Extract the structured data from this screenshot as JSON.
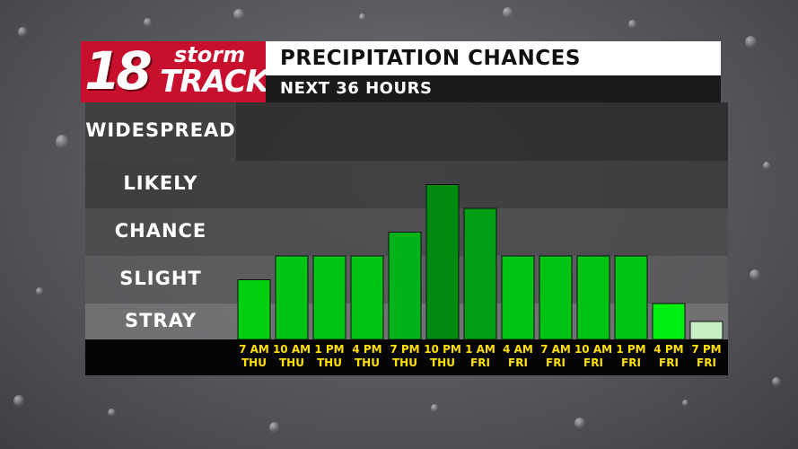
{
  "logo": {
    "number": "18",
    "word_top": "storm",
    "word_bottom": "TRACK"
  },
  "header": {
    "title": "PRECIPITATION CHANCES",
    "subtitle": "NEXT 36 HOURS"
  },
  "colors": {
    "bar_bright": "#00d010",
    "bar_mid": "#00b41a",
    "bar_dark": "#009010",
    "bar_light": "#c6efc6",
    "tick_text": "#ffe000",
    "logo_red": "#c8102e"
  },
  "chart_data": {
    "type": "bar",
    "title": "PRECIPITATION CHANCES",
    "subtitle": "NEXT 36 HOURS",
    "y_scale": "categorical",
    "y_categories": [
      "STRAY",
      "SLIGHT",
      "CHANCE",
      "LIKELY",
      "WIDESPREAD"
    ],
    "ylim": [
      0,
      5
    ],
    "categories": [
      [
        "7 AM",
        "THU"
      ],
      [
        "10 AM",
        "THU"
      ],
      [
        "1 PM",
        "THU"
      ],
      [
        "4 PM",
        "THU"
      ],
      [
        "7 PM",
        "THU"
      ],
      [
        "10 PM",
        "THU"
      ],
      [
        "1 AM",
        "FRI"
      ],
      [
        "4 AM",
        "FRI"
      ],
      [
        "7 AM",
        "FRI"
      ],
      [
        "10 AM",
        "FRI"
      ],
      [
        "1 PM",
        "FRI"
      ],
      [
        "4 PM",
        "FRI"
      ],
      [
        "7 PM",
        "FRI"
      ]
    ],
    "values": [
      1.5,
      2.0,
      2.0,
      2.0,
      2.5,
      3.5,
      3.0,
      2.0,
      2.0,
      2.0,
      2.0,
      1.0,
      0.5
    ],
    "bar_colors": [
      "#00d010",
      "#00c414",
      "#00c414",
      "#00c414",
      "#00b41a",
      "#008a10",
      "#00a014",
      "#00c414",
      "#00c414",
      "#00c414",
      "#00c414",
      "#00ee10",
      "#c6efc6"
    ],
    "grid": false,
    "legend": "none"
  }
}
